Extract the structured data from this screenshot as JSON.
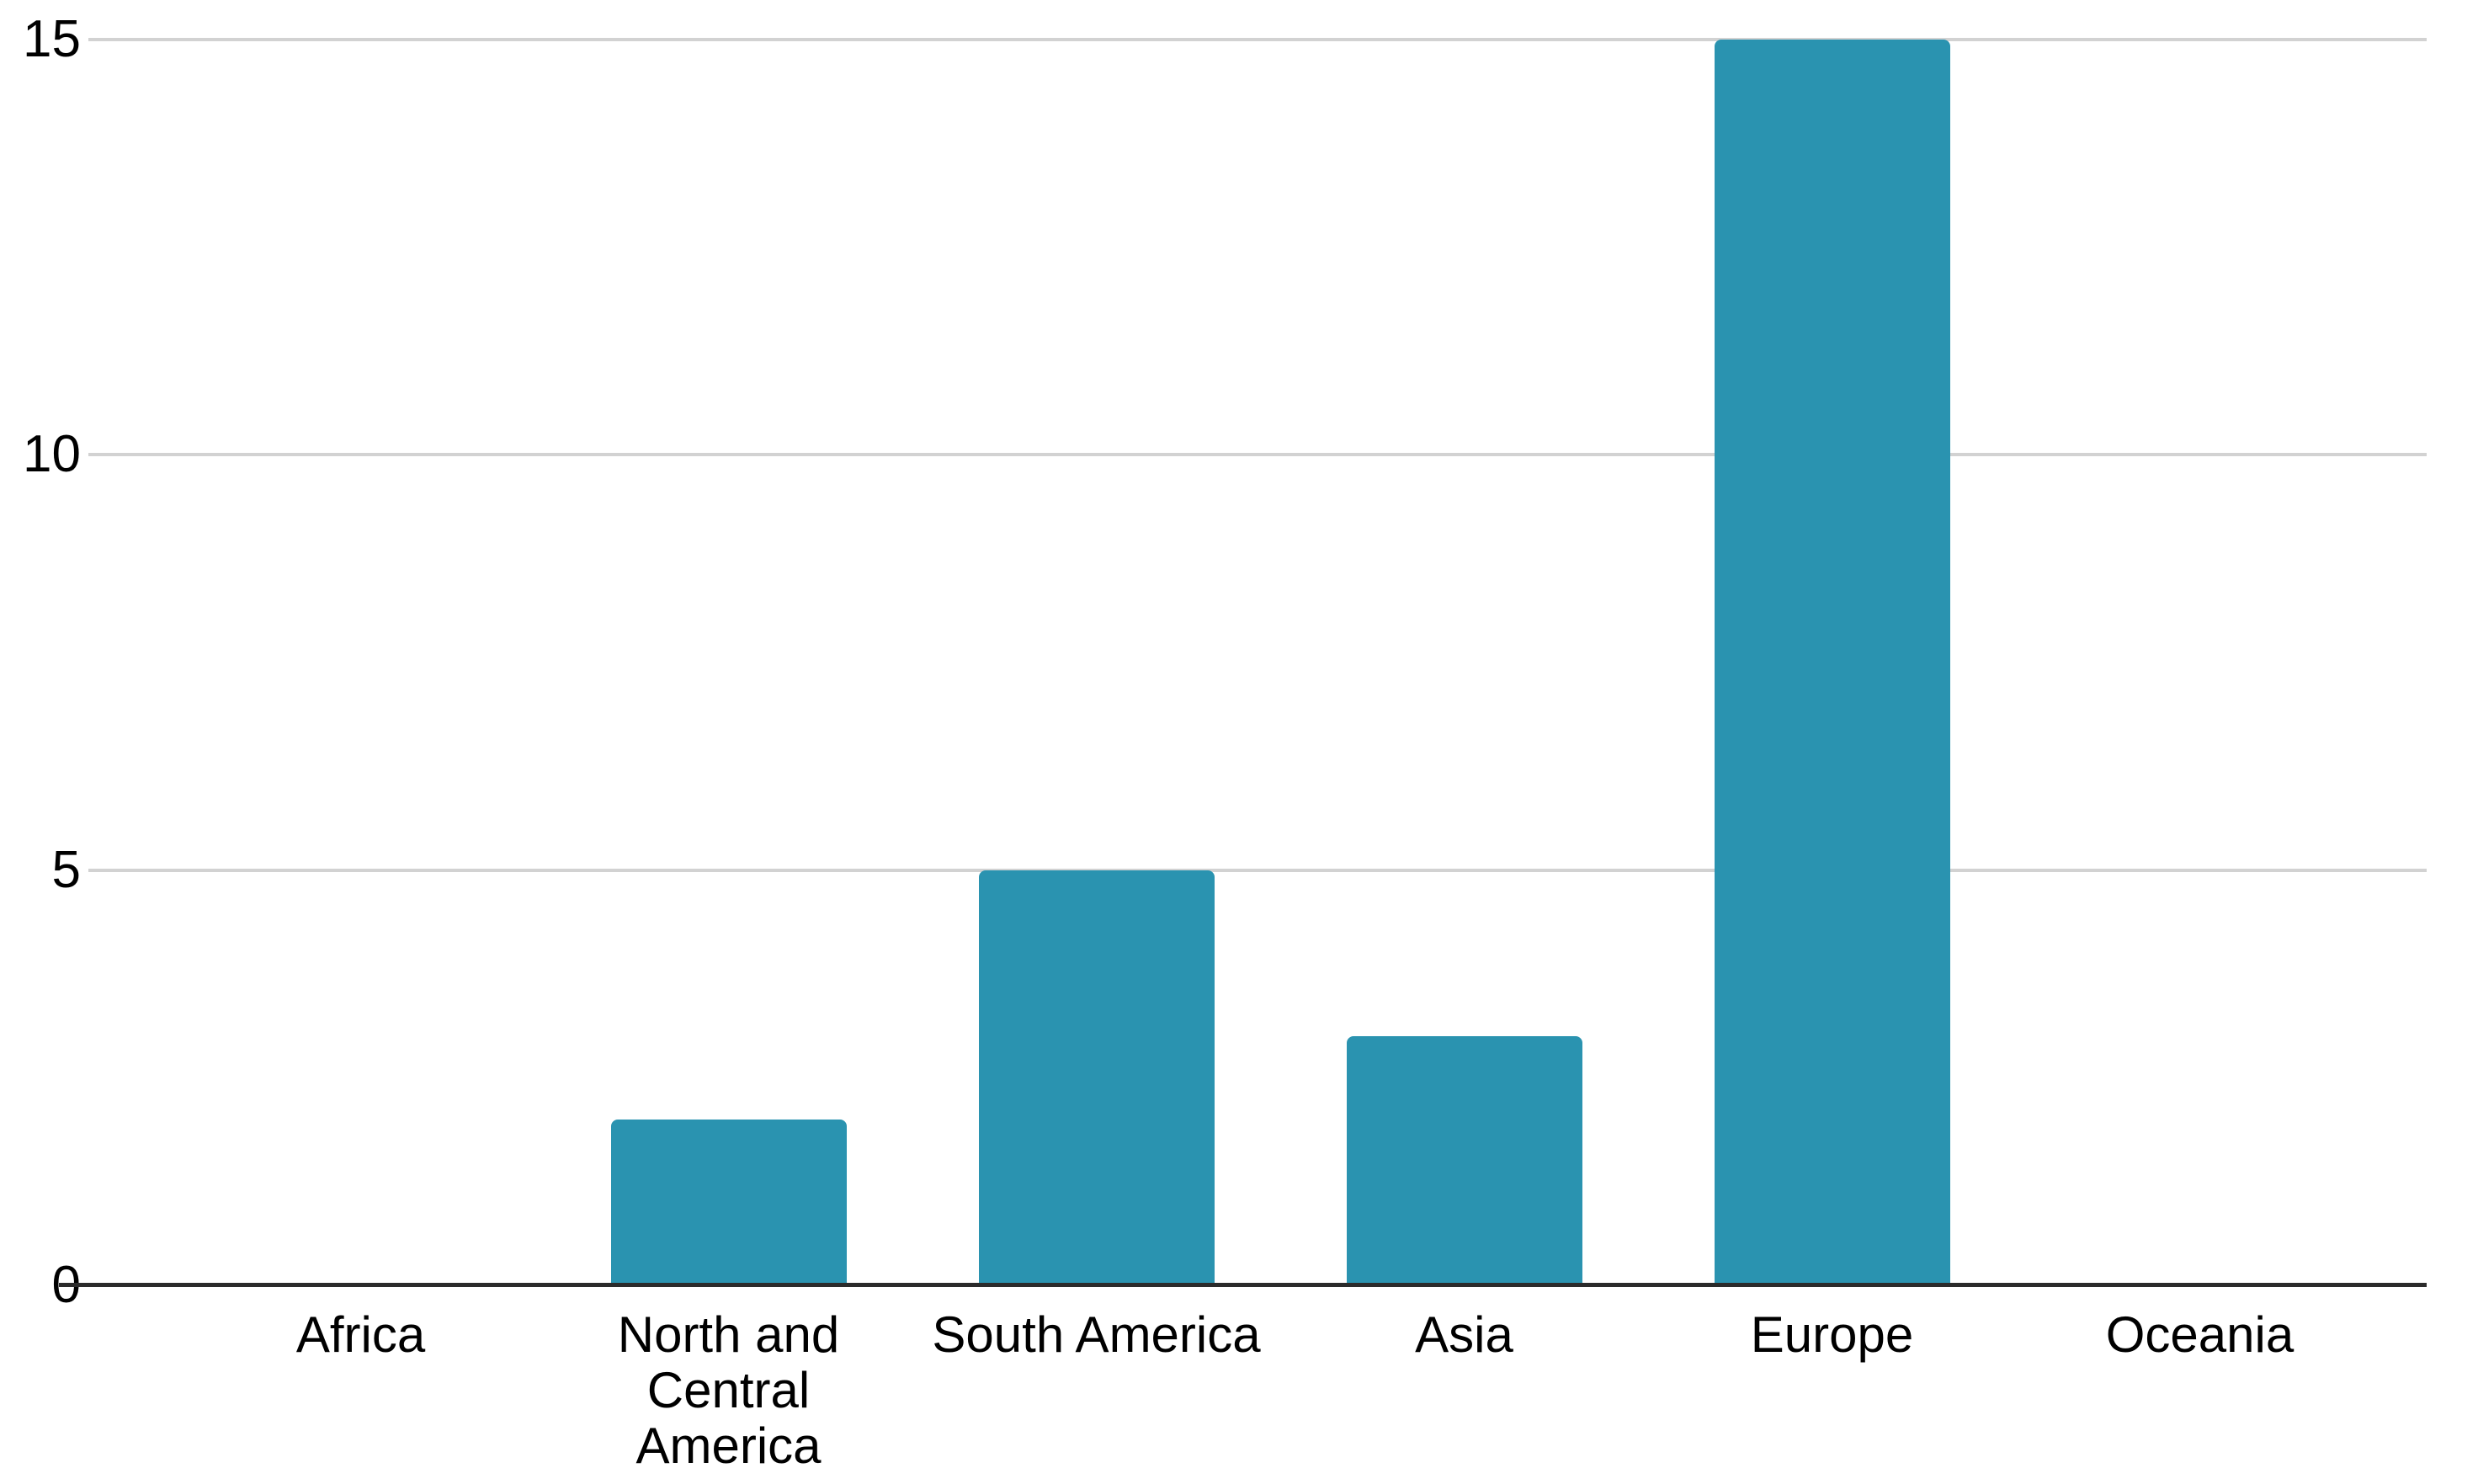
{
  "chart_data": {
    "type": "bar",
    "title": "",
    "xlabel": "",
    "ylabel": "",
    "categories": [
      "Africa",
      "North and Central America",
      "South America",
      "Asia",
      "Europe",
      "Oceania"
    ],
    "values": [
      0,
      2,
      5,
      3,
      15,
      0
    ],
    "ylim": [
      0,
      15
    ],
    "yticks": [
      0,
      5,
      10,
      15
    ],
    "grid": true,
    "legend_position": "none",
    "colors": {
      "bar": "#2a93b0",
      "gridline": "#d2d2d2",
      "axis": "#2b2b2b",
      "label": "#000000",
      "background": "#ffffff"
    }
  }
}
